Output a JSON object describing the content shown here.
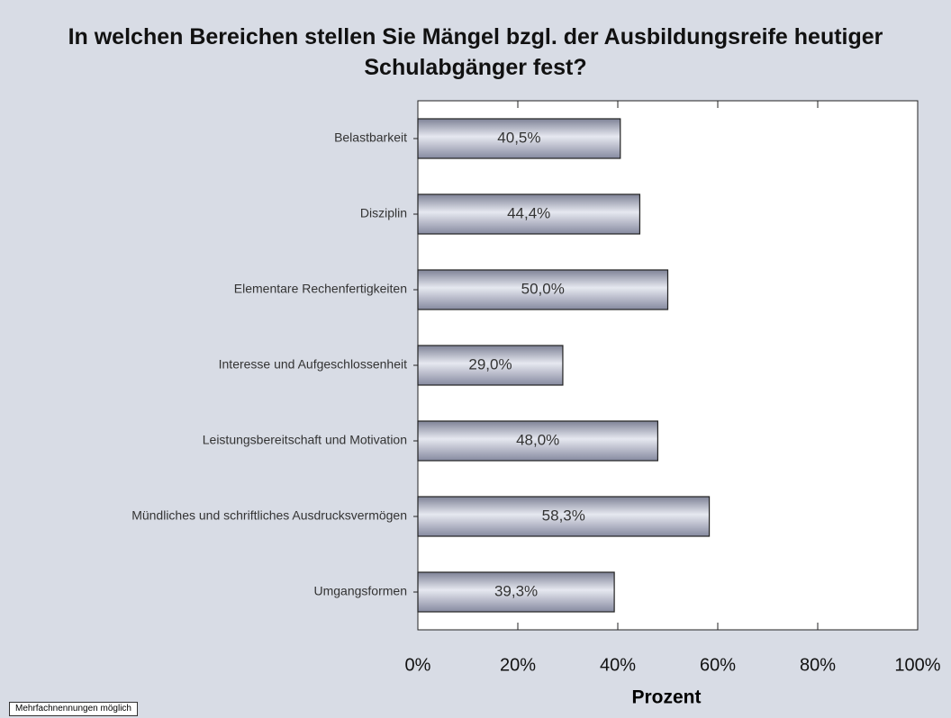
{
  "chart_data": {
    "type": "barh",
    "title": "In welchen Bereichen stellen Sie Mängel bzgl. der Ausbildungsreife heutiger Schulabgänger fest?",
    "categories": [
      "Belastbarkeit",
      "Disziplin",
      "Elementare Rechenfertigkeiten",
      "Interesse und Aufgeschlossenheit",
      "Leistungsbereitschaft und Motivation",
      "Mündliches und schriftliches Ausdrucksvermögen",
      "Umgangsformen"
    ],
    "values": [
      40.5,
      44.4,
      50.0,
      29.0,
      48.0,
      58.3,
      39.3
    ],
    "value_labels": [
      "40,5%",
      "44,4%",
      "50,0%",
      "29,0%",
      "48,0%",
      "58,3%",
      "39,3%"
    ],
    "color": "#a9adc0",
    "xlim": [
      0,
      100
    ],
    "xticks": [
      {
        "value": 0,
        "label": "0%"
      },
      {
        "value": 20,
        "label": "20%"
      },
      {
        "value": 40,
        "label": "40%"
      },
      {
        "value": 60,
        "label": "60%"
      },
      {
        "value": 80,
        "label": "80%"
      },
      {
        "value": 100,
        "label": "100%"
      }
    ],
    "xlabel": "Prozent",
    "note": "Mehrfachnennungen möglich"
  }
}
